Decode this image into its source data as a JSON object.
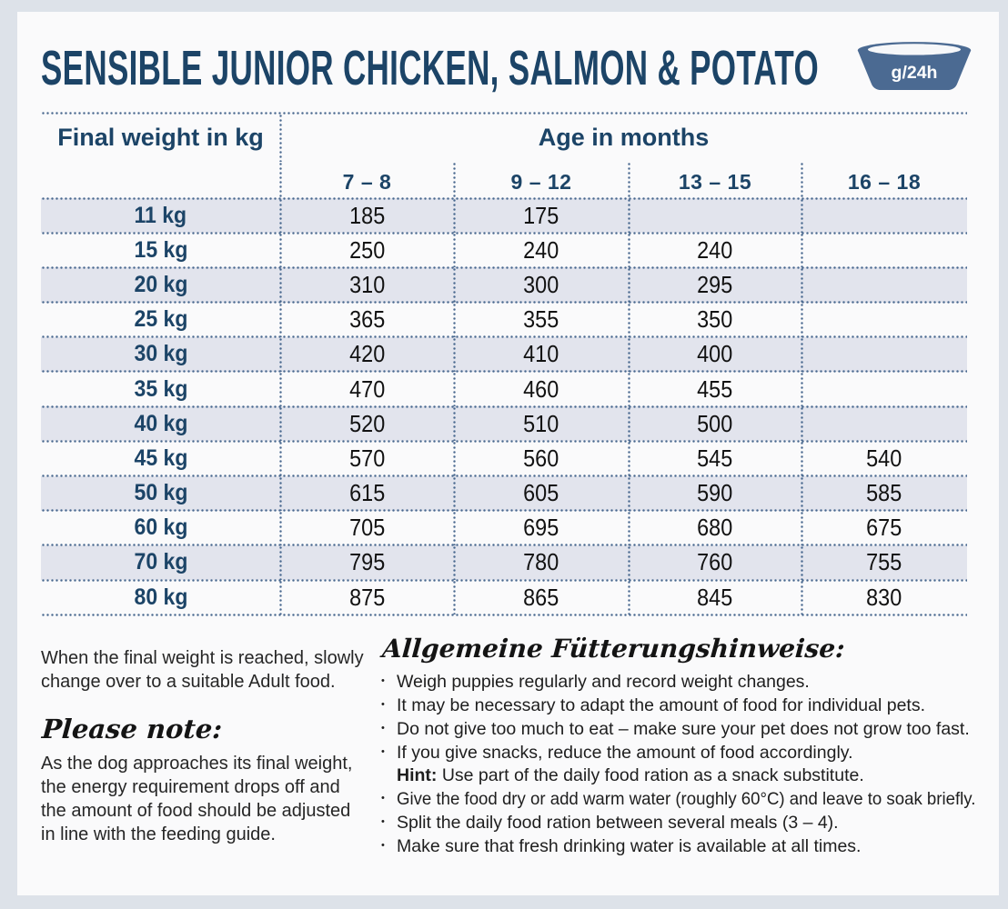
{
  "title": "SENSIBLE JUNIOR CHICKEN, SALMON & POTATO",
  "badge": {
    "label": "g/24h",
    "icon": "dog-bowl-icon"
  },
  "table": {
    "col1_header": "Final weight in kg",
    "group_header": "Age in months",
    "age_columns": [
      "7 – 8",
      "9 – 12",
      "13 – 15",
      "16 – 18"
    ],
    "unit": "g/24h",
    "rows": [
      {
        "weight": "11 kg",
        "values": [
          "185",
          "175",
          "",
          ""
        ]
      },
      {
        "weight": "15 kg",
        "values": [
          "250",
          "240",
          "240",
          ""
        ]
      },
      {
        "weight": "20 kg",
        "values": [
          "310",
          "300",
          "295",
          ""
        ]
      },
      {
        "weight": "25 kg",
        "values": [
          "365",
          "355",
          "350",
          ""
        ]
      },
      {
        "weight": "30 kg",
        "values": [
          "420",
          "410",
          "400",
          ""
        ]
      },
      {
        "weight": "35 kg",
        "values": [
          "470",
          "460",
          "455",
          ""
        ]
      },
      {
        "weight": "40 kg",
        "values": [
          "520",
          "510",
          "500",
          ""
        ]
      },
      {
        "weight": "45 kg",
        "values": [
          "570",
          "560",
          "545",
          "540"
        ]
      },
      {
        "weight": "50 kg",
        "values": [
          "615",
          "605",
          "590",
          "585"
        ]
      },
      {
        "weight": "60 kg",
        "values": [
          "705",
          "695",
          "680",
          "675"
        ]
      },
      {
        "weight": "70 kg",
        "values": [
          "795",
          "780",
          "760",
          "755"
        ]
      },
      {
        "weight": "80 kg",
        "values": [
          "875",
          "865",
          "845",
          "830"
        ]
      }
    ]
  },
  "notes_left": {
    "paragraph": "When the final weight is reached, slowly change over to a suitable Adult food.",
    "heading": "Please note:",
    "body": "As the dog approaches its final weight, the energy requirement drops off and the amount of food should be adjusted in line with the feeding guide."
  },
  "notes_right": {
    "heading": "Allgemeine Fütterungshinweise:",
    "items": [
      {
        "text": "Weigh puppies regularly and record weight changes."
      },
      {
        "text": "It may be necessary to adapt the amount of food for individual pets."
      },
      {
        "text": "Do not give too much to eat – make sure your pet does not grow too fast."
      },
      {
        "text": "If you give snacks, reduce the amount of food accordingly."
      },
      {
        "prefix": "Hint:",
        "text": " Use part of the daily food ration as a snack substitute.",
        "indent": true
      },
      {
        "text": "Give the food dry or add warm water (roughly 60°C) and leave to soak briefly."
      },
      {
        "text": "Split the daily food ration between several meals (3 – 4)."
      },
      {
        "text": "Make sure that fresh drinking water is available at all times."
      }
    ]
  },
  "colors": {
    "page_background": "#dde2e9",
    "card_background": "#fafafb",
    "navy": "#1c4467",
    "slate_dots": "#47678e",
    "bowl_blue": "#4b6a92",
    "row_shade": "#e2e4ed"
  }
}
